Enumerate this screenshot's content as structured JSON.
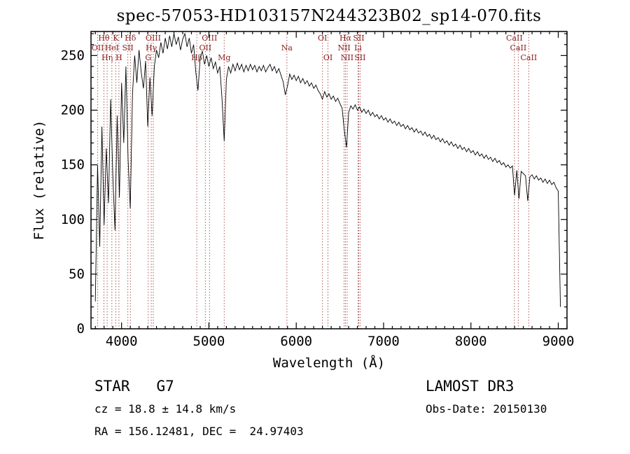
{
  "title": "spec-57053-HD103157N244323B02_sp14-070.fits",
  "chart_data": {
    "type": "line",
    "title": "spec-57053-HD103157N244323B02_sp14-070.fits",
    "xlabel": "Wavelength (Å)",
    "ylabel": "Flux (relative)",
    "xlim": [
      3650,
      9100
    ],
    "ylim": [
      0,
      272
    ],
    "x_ticks": [
      4000,
      5000,
      6000,
      7000,
      8000,
      9000
    ],
    "y_ticks": [
      0,
      50,
      100,
      150,
      200,
      250
    ],
    "x_minor_step": 100,
    "y_minor_step": 10,
    "grid": false,
    "legend": "none",
    "colors": {
      "spectrum": "#000000",
      "marker": "#a04545",
      "marker_label": "#8b1a1a"
    },
    "series": [
      {
        "name": "spectrum",
        "x_start": 3700,
        "x_step": 25,
        "flux": [
          25,
          150,
          75,
          185,
          95,
          165,
          115,
          210,
          140,
          90,
          195,
          120,
          225,
          170,
          240,
          155,
          110,
          215,
          250,
          225,
          255,
          235,
          220,
          245,
          185,
          230,
          195,
          240,
          255,
          248,
          262,
          252,
          266,
          256,
          268,
          258,
          270,
          260,
          267,
          255,
          265,
          270,
          258,
          266,
          252,
          260,
          235,
          218,
          248,
          254,
          242,
          250,
          240,
          248,
          238,
          244,
          234,
          240,
          210,
          172,
          228,
          240,
          234,
          242,
          236,
          243,
          237,
          242,
          235,
          241,
          236,
          242,
          237,
          241,
          235,
          240,
          236,
          241,
          235,
          239,
          242,
          236,
          240,
          234,
          238,
          232,
          226,
          214,
          222,
          233,
          228,
          232,
          227,
          231,
          225,
          229,
          224,
          227,
          222,
          225,
          220,
          223,
          218,
          215,
          210,
          217,
          212,
          215,
          210,
          213,
          208,
          211,
          206,
          202,
          182,
          166,
          198,
          204,
          201,
          205,
          200,
          203,
          198,
          201,
          197,
          200,
          195,
          198,
          194,
          196,
          192,
          195,
          191,
          193,
          189,
          192,
          188,
          190,
          186,
          189,
          185,
          187,
          183,
          186,
          182,
          184,
          180,
          183,
          179,
          181,
          177,
          180,
          176,
          178,
          174,
          177,
          173,
          175,
          171,
          174,
          170,
          172,
          168,
          171,
          167,
          169,
          165,
          168,
          164,
          166,
          162,
          165,
          161,
          163,
          159,
          162,
          158,
          160,
          156,
          159,
          155,
          157,
          153,
          156,
          152,
          154,
          150,
          152,
          148,
          150,
          147,
          149,
          122,
          145,
          119,
          144,
          142,
          140,
          117,
          139,
          141,
          137,
          140,
          136,
          138,
          134,
          137,
          133,
          136,
          132,
          134,
          129,
          126,
          20
        ]
      }
    ],
    "spectral_lines": [
      {
        "label": "OII",
        "wl": 3727,
        "row": 1
      },
      {
        "label": "Hθ",
        "wl": 3798,
        "row": 0
      },
      {
        "label": "Hη",
        "wl": 3835,
        "row": 2
      },
      {
        "label": "HeI",
        "wl": 3889,
        "row": 1
      },
      {
        "label": "K",
        "wl": 3933,
        "row": 0
      },
      {
        "label": "H",
        "wl": 3970,
        "row": 2
      },
      {
        "label": "SII",
        "wl": 4072,
        "row": 1
      },
      {
        "label": "Hδ",
        "wl": 4101,
        "row": 0
      },
      {
        "label": "G",
        "wl": 4305,
        "row": 2
      },
      {
        "label": "Hγ",
        "wl": 4340,
        "row": 1
      },
      {
        "label": "OIII",
        "wl": 4363,
        "row": 0
      },
      {
        "label": "Hβ",
        "wl": 4861,
        "row": 2
      },
      {
        "label": "OII",
        "wl": 4959,
        "row": 1
      },
      {
        "label": "OIII",
        "wl": 5007,
        "row": 0
      },
      {
        "label": "Mg",
        "wl": 5175,
        "row": 2
      },
      {
        "label": "Na",
        "wl": 5893,
        "row": 1
      },
      {
        "label": "OI",
        "wl": 6300,
        "row": 0
      },
      {
        "label": "OI",
        "wl": 6363,
        "row": 2
      },
      {
        "label": "NII",
        "wl": 6548,
        "row": 1
      },
      {
        "label": "Hα",
        "wl": 6563,
        "row": 0
      },
      {
        "label": "NII",
        "wl": 6583,
        "row": 2
      },
      {
        "label": "Li",
        "wl": 6708,
        "row": 1
      },
      {
        "label": "SII",
        "wl": 6716,
        "row": 0
      },
      {
        "label": "SII",
        "wl": 6731,
        "row": 2
      },
      {
        "label": "CaII",
        "wl": 8498,
        "row": 0
      },
      {
        "label": "CaII",
        "wl": 8542,
        "row": 1
      },
      {
        "label": "CaII",
        "wl": 8662,
        "row": 2
      }
    ]
  },
  "annotations": {
    "classification": "STAR   G7",
    "cz": "cz = 18.8 ± 14.8 km/s",
    "radec": "RA = 156.12481, DEC =  24.97403",
    "survey": "LAMOST DR3",
    "obs_date": "Obs-Date: 20150130"
  }
}
